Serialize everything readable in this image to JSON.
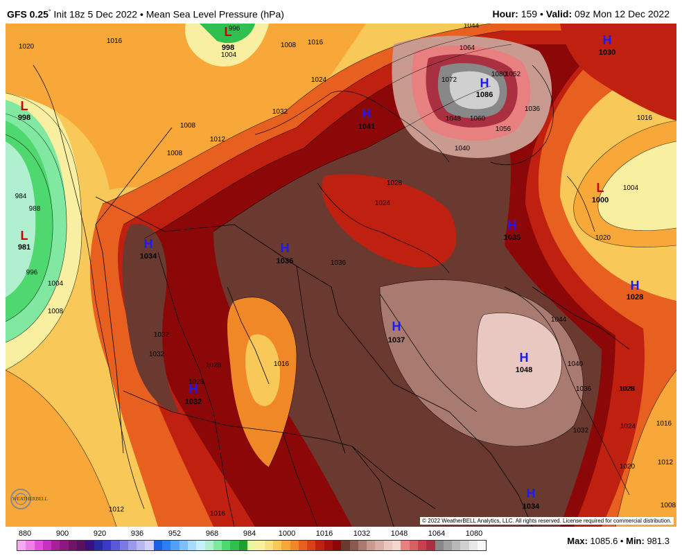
{
  "header": {
    "model": "GFS 0.25",
    "degree": "°",
    "init": "Init 18z 5 Dec 2022",
    "sep": "•",
    "product": "Mean Sea Level Pressure (hPa)",
    "hour_label": "Hour:",
    "hour_value": "159",
    "valid_label": "Valid:",
    "valid_value": "09z Mon 12 Dec 2022"
  },
  "footer": {
    "credit": "© 2022 WeatherBELL Analytics, LLC. All rights reserved. License required for commercial distribution.",
    "logo_text": "WEATHERBELL",
    "max_label": "Max:",
    "max_value": "1085.6",
    "min_label": "Min:",
    "min_value": "981.3"
  },
  "legend": {
    "ticks": [
      "880",
      "900",
      "920",
      "936",
      "952",
      "968",
      "984",
      "1000",
      "1016",
      "1032",
      "1048",
      "1064",
      "1080"
    ],
    "colors": [
      "#f7a8f0",
      "#f080e8",
      "#e050d8",
      "#c830c0",
      "#a82098",
      "#8c1880",
      "#701468",
      "#5a1060",
      "#3a1080",
      "#2a2aa0",
      "#3a3ac8",
      "#5a5ad8",
      "#7a7ae0",
      "#9a9ae8",
      "#b8b8f0",
      "#d0d0f8",
      "#1a60e0",
      "#2a80f0",
      "#50a0f8",
      "#80c0fa",
      "#a8dcfc",
      "#c8f0fc",
      "#b0f0d0",
      "#80e8a0",
      "#50d870",
      "#30c050",
      "#20a030",
      "#e8f8a0",
      "#f8f0a0",
      "#f8e080",
      "#f8c858",
      "#f8a838",
      "#f08828",
      "#e86020",
      "#d84018",
      "#c02010",
      "#a81010",
      "#8c0808",
      "#6a3a30",
      "#8a5a50",
      "#a87a70",
      "#c89a90",
      "#d8b0a8",
      "#e8c8c0",
      "#f0d8d0",
      "#e88080",
      "#d86060",
      "#c84050",
      "#a83040",
      "#888888",
      "#a0a0a0",
      "#b8b8b8",
      "#d0d0d0",
      "#e8e8e8",
      "#f8f8f8"
    ]
  },
  "systems": [
    {
      "type": "L",
      "value": "998"
    },
    {
      "type": "L",
      "value": "998"
    },
    {
      "type": "L",
      "value": "981"
    },
    {
      "type": "L",
      "value": "1000"
    },
    {
      "type": "H",
      "value": "1030"
    },
    {
      "type": "H",
      "value": "1086"
    },
    {
      "type": "H",
      "value": "1041"
    },
    {
      "type": "H",
      "value": "1034"
    },
    {
      "type": "H",
      "value": "1036"
    },
    {
      "type": "H",
      "value": "1035"
    },
    {
      "type": "H",
      "value": "1028"
    },
    {
      "type": "H",
      "value": "1037"
    },
    {
      "type": "H",
      "value": "1048"
    },
    {
      "type": "H",
      "value": "1032"
    },
    {
      "type": "H",
      "value": "1034"
    }
  ],
  "contour_labels": [
    "1020",
    "1016",
    "996",
    "1004",
    "1008",
    "1016",
    "1024",
    "1044",
    "1064",
    "1072",
    "1080",
    "1052",
    "1036",
    "1048",
    "1060",
    "1056",
    "1040",
    "1016",
    "1004",
    "1008",
    "1012",
    "1008",
    "1032",
    "1028",
    "1024",
    "984",
    "988",
    "996",
    "1004",
    "1008",
    "1028",
    "1036",
    "1020",
    "1032",
    "1028",
    "1016",
    "1028",
    "1032",
    "1040",
    "1036",
    "1044",
    "1028",
    "1024",
    "1016",
    "1012",
    "1020",
    "1008",
    "1012",
    "1016",
    "1032"
  ]
}
